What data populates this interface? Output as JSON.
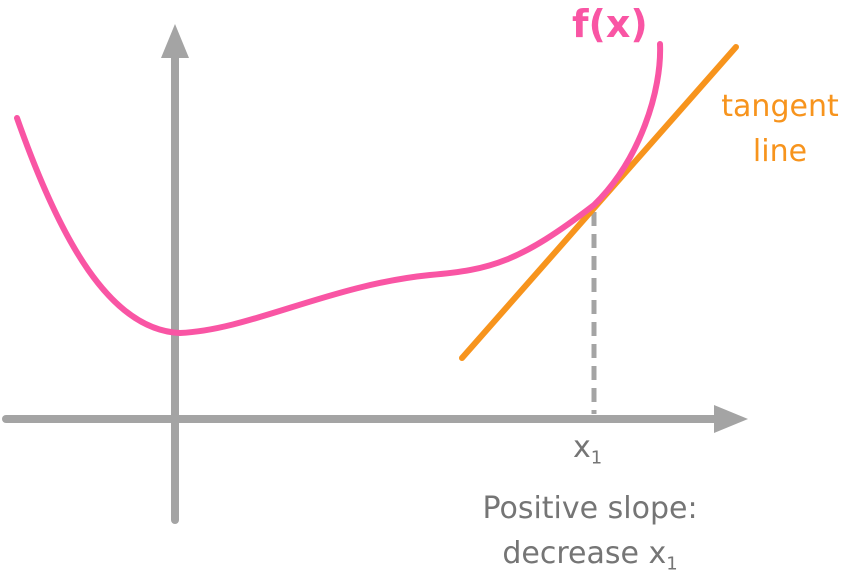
{
  "colors": {
    "axes": "#a4a4a4",
    "curve": "#f955a4",
    "tangent": "#f7941d",
    "dashed": "#a4a4a4",
    "text": "#757575"
  },
  "labels": {
    "function": "f(x)",
    "tangent_line_1": "tangent",
    "tangent_line_2": "line",
    "point_x": "x",
    "point_sub": "1",
    "slope_line_1": "Positive slope:",
    "slope_line_2_text": "decrease x",
    "slope_line_2_sub": "1"
  }
}
